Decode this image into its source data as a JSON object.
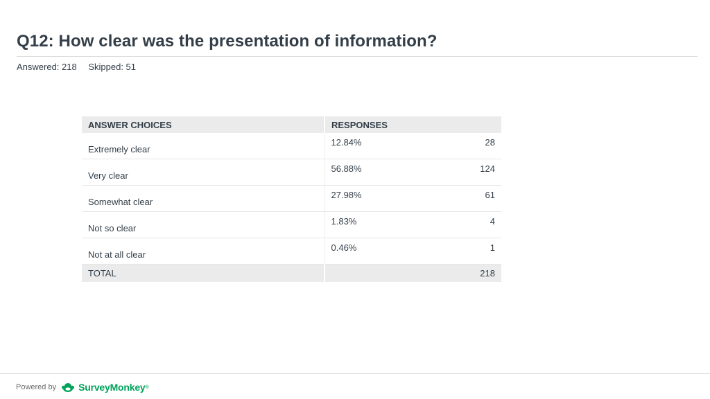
{
  "question": {
    "title": "Q12: How clear was the presentation of information?",
    "answered": "Answered: 218",
    "skipped": "Skipped: 51"
  },
  "table": {
    "header_choice": "ANSWER CHOICES",
    "header_responses": "RESPONSES",
    "rows": [
      {
        "choice": "Extremely clear",
        "percent": "12.84%",
        "count": "28"
      },
      {
        "choice": "Very clear",
        "percent": "56.88%",
        "count": "124"
      },
      {
        "choice": "Somewhat clear",
        "percent": "27.98%",
        "count": "61"
      },
      {
        "choice": "Not so clear",
        "percent": "1.83%",
        "count": "4"
      },
      {
        "choice": "Not at all clear",
        "percent": "0.46%",
        "count": "1"
      }
    ],
    "total_label": "TOTAL",
    "total_count": "218"
  },
  "footer": {
    "powered_by": "Powered by",
    "brand": "SurveyMonkey",
    "trademark": "®",
    "logo_icon": "surveymonkey-logo-icon",
    "brand_color": "#00a35a"
  }
}
